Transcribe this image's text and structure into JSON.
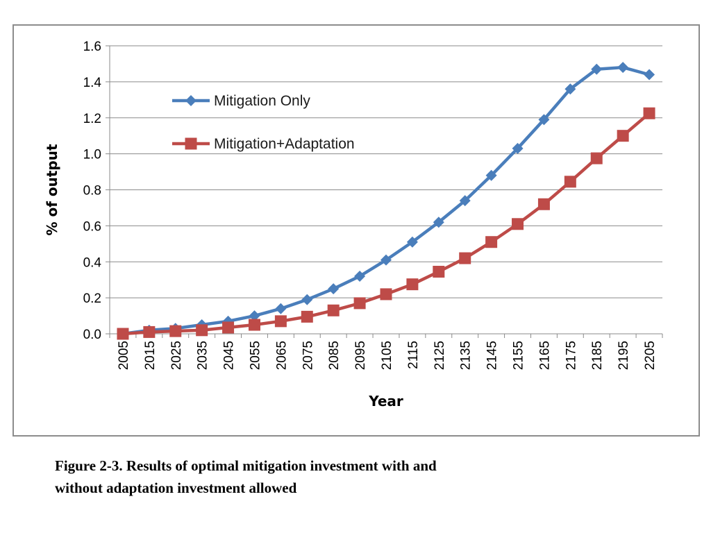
{
  "chart_data": {
    "type": "line",
    "title": "",
    "xlabel": "Year",
    "ylabel": "% of output",
    "ylim": [
      0,
      1.6
    ],
    "y_ticks": [
      "0.0",
      "0.2",
      "0.4",
      "0.6",
      "0.8",
      "1.0",
      "1.2",
      "1.4",
      "1.6"
    ],
    "grid": true,
    "legend_position": "top-left",
    "categories": [
      "2005",
      "2015",
      "2025",
      "2035",
      "2045",
      "2055",
      "2065",
      "2075",
      "2085",
      "2095",
      "2105",
      "2115",
      "2125",
      "2135",
      "2145",
      "2155",
      "2165",
      "2175",
      "2185",
      "2195",
      "2205"
    ],
    "series": [
      {
        "name": "Mitigation Only",
        "color": "#4a7ebb",
        "marker": "diamond",
        "values": [
          0.0,
          0.02,
          0.03,
          0.05,
          0.07,
          0.1,
          0.14,
          0.19,
          0.25,
          0.32,
          0.41,
          0.51,
          0.62,
          0.74,
          0.88,
          1.03,
          1.19,
          1.36,
          1.47,
          1.48,
          1.44
        ]
      },
      {
        "name": "Mitigation+Adaptation",
        "color": "#be4b48",
        "marker": "square",
        "values": [
          0.0,
          0.01,
          0.015,
          0.02,
          0.035,
          0.05,
          0.07,
          0.095,
          0.13,
          0.17,
          0.22,
          0.275,
          0.345,
          0.42,
          0.51,
          0.61,
          0.72,
          0.845,
          0.975,
          1.1,
          1.225
        ]
      }
    ]
  },
  "caption": {
    "line1": "Figure 2-3. Results of optimal mitigation investment with and",
    "line2": "without adaptation investment allowed"
  }
}
